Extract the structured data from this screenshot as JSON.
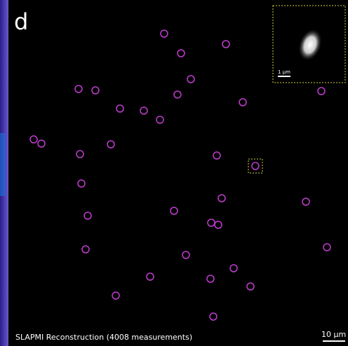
{
  "panel_label": "d",
  "caption": "SLAPMI Reconstruction  (4008 measurements)",
  "scale_bar": "10 μm",
  "inset": {
    "scale_bar": "1 μm"
  }
}
